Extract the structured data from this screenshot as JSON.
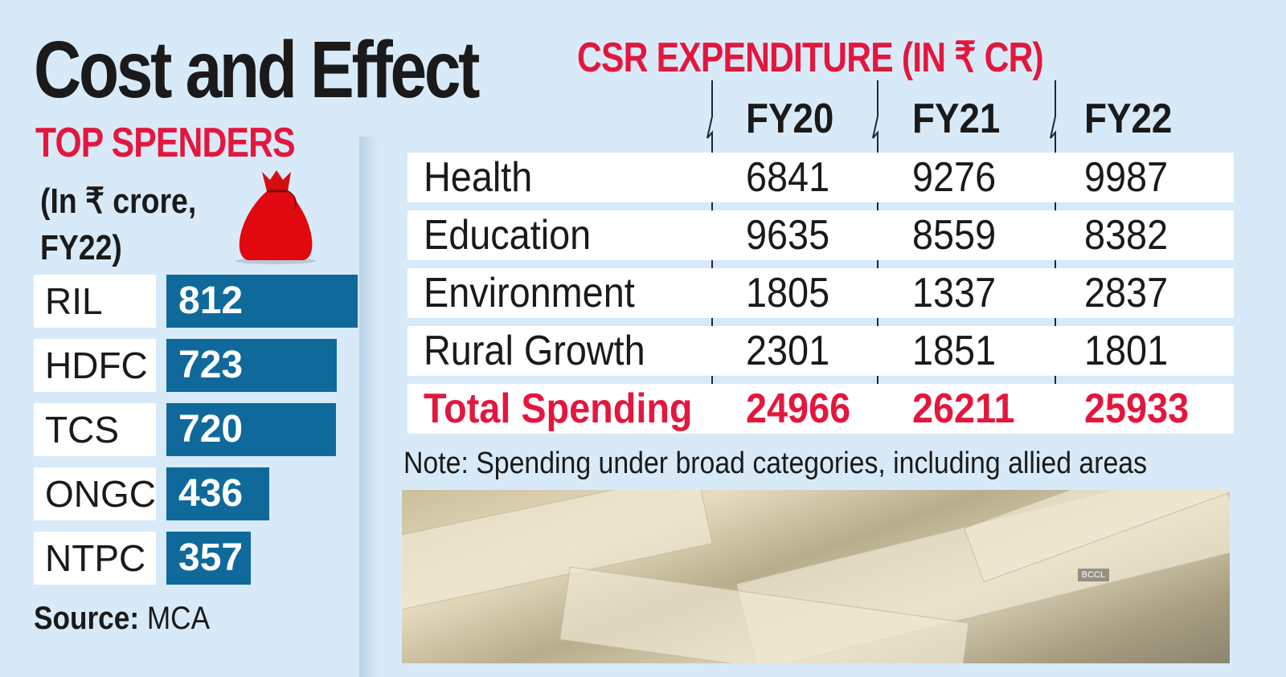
{
  "title": "Cost and Effect",
  "top_spenders": {
    "heading": "TOP SPENDERS",
    "unit_line1": "(In ₹ crore,",
    "unit_line2": "FY22)",
    "icon": "money-bag-icon",
    "source_label": "Source:",
    "source_value": "MCA"
  },
  "csr": {
    "heading": "CSR EXPENDITURE  (IN ₹ CR)",
    "columns": [
      "FY20",
      "FY21",
      "FY22"
    ],
    "rows": [
      {
        "label": "Health",
        "values": [
          "6841",
          "9276",
          "9987"
        ]
      },
      {
        "label": "Education",
        "values": [
          "9635",
          "8559",
          "8382"
        ]
      },
      {
        "label": "Environment",
        "values": [
          "1805",
          "1337",
          "2837"
        ]
      },
      {
        "label": "Rural Growth",
        "values": [
          "2301",
          "1851",
          "1801"
        ]
      },
      {
        "label": "Total Spending",
        "values": [
          "24966",
          "26211",
          "25933"
        ]
      }
    ],
    "note": "Note: Spending under broad categories, including allied areas"
  },
  "photo": {
    "watermark": "BCCL"
  },
  "colors": {
    "background": "#d8eaf8",
    "bar": "#0f6a9b",
    "accent_red": "#e3173e"
  },
  "chart_data": [
    {
      "type": "bar",
      "orientation": "horizontal",
      "title": "TOP SPENDERS",
      "subtitle": "(In ₹ crore, FY22)",
      "categories": [
        "RIL",
        "HDFC",
        "TCS",
        "ONGC",
        "NTPC"
      ],
      "values": [
        812,
        723,
        720,
        436,
        357
      ],
      "data_labels": true,
      "grid": false
    },
    {
      "type": "table",
      "title": "CSR EXPENDITURE  (IN ₹ CR)",
      "columns": [
        "FY20",
        "FY21",
        "FY22"
      ],
      "rows": [
        "Health",
        "Education",
        "Environment",
        "Rural Growth",
        "Total Spending"
      ],
      "values": [
        [
          6841,
          9276,
          9987
        ],
        [
          9635,
          8559,
          8382
        ],
        [
          1805,
          1337,
          2837
        ],
        [
          2301,
          1851,
          1801
        ],
        [
          24966,
          26211,
          25933
        ]
      ]
    }
  ]
}
